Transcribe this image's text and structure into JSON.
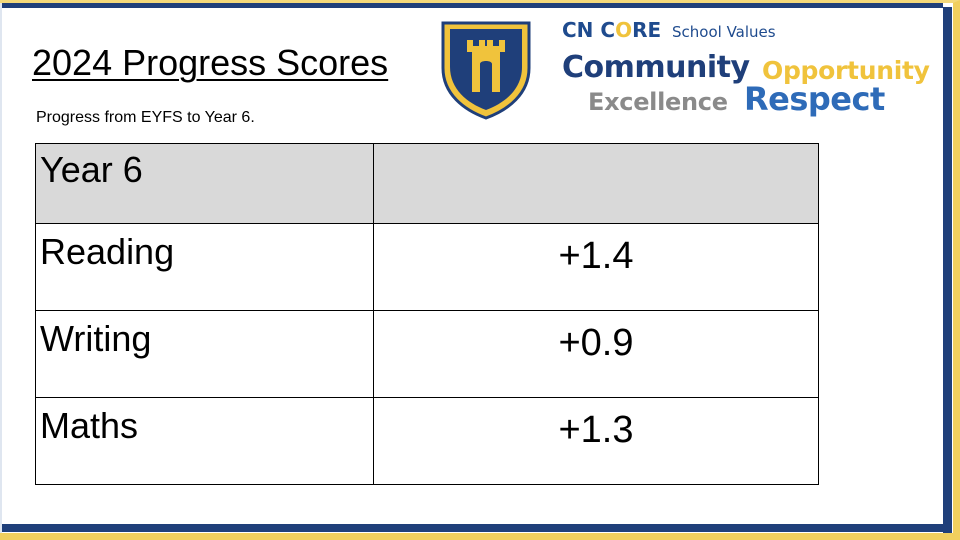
{
  "slide": {
    "title": "2024 Progress Scores",
    "subtitle": "Progress from EYFS to Year 6."
  },
  "crest": {
    "icon": "castle-shield-icon",
    "colors": {
      "navy": "#1f3f7a",
      "gold": "#f0c33c"
    }
  },
  "values": {
    "cn": "CN ",
    "core_c": "C",
    "core_o": "O",
    "core_re": "RE",
    "school_values": "School Values",
    "community": "Community",
    "opportunity": "Opportunity",
    "excellence": "Excellence",
    "respect": "Respect"
  },
  "table": {
    "header": [
      "Year 6",
      ""
    ],
    "rows": [
      {
        "subject": "Reading",
        "score": "+1.4"
      },
      {
        "subject": "Writing",
        "score": "+0.9"
      },
      {
        "subject": "Maths",
        "score": "+1.3"
      }
    ]
  },
  "colors": {
    "navy": "#1f3f7a",
    "yellow": "#f0cf5e",
    "header_fill": "#d9d9d9"
  }
}
